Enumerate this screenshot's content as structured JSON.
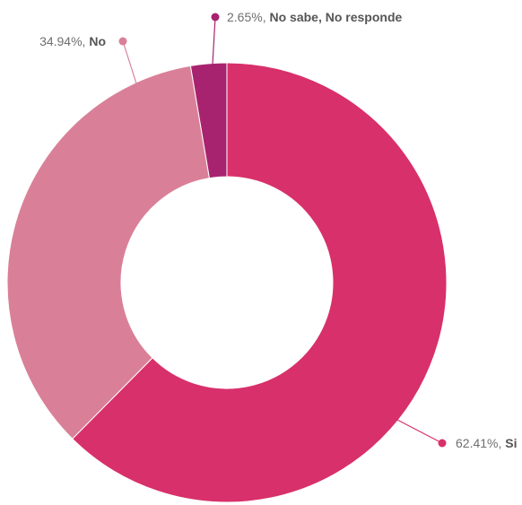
{
  "chart_data": {
    "type": "pie",
    "variant": "donut",
    "title": "",
    "slices": [
      {
        "label": "Si",
        "value": 62.41,
        "percent_text": "62.41%",
        "color": "#d8306a"
      },
      {
        "label": "No",
        "value": 34.94,
        "percent_text": "34.94%",
        "color": "#d98098"
      },
      {
        "label": "No sabe, No responde",
        "value": 2.65,
        "percent_text": "2.65%",
        "color": "#a8236f"
      }
    ],
    "legend": "none",
    "data_labels": "outside-with-leader-lines"
  }
}
